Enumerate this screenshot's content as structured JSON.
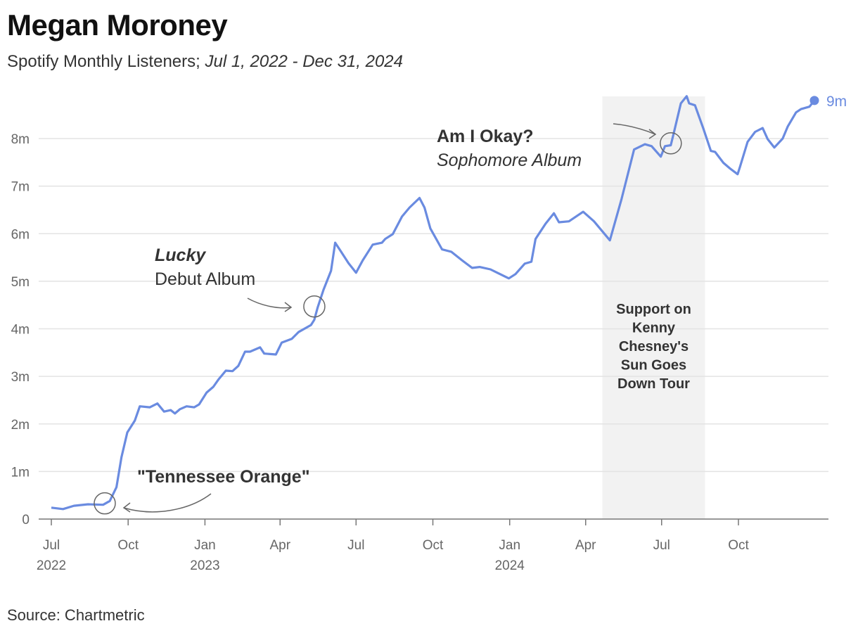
{
  "title": "Megan Moroney",
  "subtitle": {
    "metric": "Spotify Monthly Listeners; ",
    "range": "Jul 1, 2022 - Dec 31, 2024"
  },
  "source": "Source: Chartmetric",
  "chart_data": {
    "type": "line",
    "title": "Megan Moroney",
    "ylim": [
      0,
      9
    ],
    "xlim": [
      "2022-07-01",
      "2024-12-31"
    ],
    "grid": true,
    "line_color": "#6a8be0",
    "y_ticks": [
      {
        "v": 0,
        "label": "0"
      },
      {
        "v": 1,
        "label": "1m"
      },
      {
        "v": 2,
        "label": "2m"
      },
      {
        "v": 3,
        "label": "3m"
      },
      {
        "v": 4,
        "label": "4m"
      },
      {
        "v": 5,
        "label": "5m"
      },
      {
        "v": 6,
        "label": "6m"
      },
      {
        "v": 7,
        "label": "7m"
      },
      {
        "v": 8,
        "label": "8m"
      }
    ],
    "x_ticks": [
      {
        "date": "2022-07-01",
        "label": "Jul",
        "year": "2022"
      },
      {
        "date": "2022-10-01",
        "label": "Oct",
        "year": ""
      },
      {
        "date": "2023-01-01",
        "label": "Jan",
        "year": "2023"
      },
      {
        "date": "2023-04-01",
        "label": "Apr",
        "year": ""
      },
      {
        "date": "2023-07-01",
        "label": "Jul",
        "year": ""
      },
      {
        "date": "2023-10-01",
        "label": "Oct",
        "year": ""
      },
      {
        "date": "2024-01-01",
        "label": "Jan",
        "year": "2024"
      },
      {
        "date": "2024-04-01",
        "label": "Apr",
        "year": ""
      },
      {
        "date": "2024-07-01",
        "label": "Jul",
        "year": ""
      },
      {
        "date": "2024-10-01",
        "label": "Oct",
        "year": ""
      }
    ],
    "series": [
      {
        "points": [
          [
            "2022-07-01",
            0.24
          ],
          [
            "2022-07-15",
            0.21
          ],
          [
            "2022-07-28",
            0.28
          ],
          [
            "2022-08-14",
            0.31
          ],
          [
            "2022-09-01",
            0.3
          ],
          [
            "2022-09-09",
            0.38
          ],
          [
            "2022-09-17",
            0.67
          ],
          [
            "2022-09-23",
            1.3
          ],
          [
            "2022-09-30",
            1.82
          ],
          [
            "2022-10-09",
            2.07
          ],
          [
            "2022-10-15",
            2.37
          ],
          [
            "2022-10-27",
            2.35
          ],
          [
            "2022-11-05",
            2.43
          ],
          [
            "2022-11-13",
            2.26
          ],
          [
            "2022-11-21",
            2.29
          ],
          [
            "2022-11-26",
            2.22
          ],
          [
            "2022-12-02",
            2.31
          ],
          [
            "2022-12-10",
            2.37
          ],
          [
            "2022-12-19",
            2.35
          ],
          [
            "2022-12-25",
            2.41
          ],
          [
            "2023-01-03",
            2.66
          ],
          [
            "2023-01-11",
            2.78
          ],
          [
            "2023-01-17",
            2.93
          ],
          [
            "2023-01-26",
            3.12
          ],
          [
            "2023-02-03",
            3.11
          ],
          [
            "2023-02-10",
            3.22
          ],
          [
            "2023-02-18",
            3.52
          ],
          [
            "2023-02-24",
            3.52
          ],
          [
            "2023-03-08",
            3.61
          ],
          [
            "2023-03-13",
            3.48
          ],
          [
            "2023-03-27",
            3.46
          ],
          [
            "2023-04-03",
            3.71
          ],
          [
            "2023-04-15",
            3.79
          ],
          [
            "2023-04-23",
            3.93
          ],
          [
            "2023-05-08",
            4.08
          ],
          [
            "2023-05-12",
            4.19
          ],
          [
            "2023-05-16",
            4.45
          ],
          [
            "2023-05-23",
            4.82
          ],
          [
            "2023-06-01",
            5.22
          ],
          [
            "2023-06-06",
            5.81
          ],
          [
            "2023-06-12",
            5.65
          ],
          [
            "2023-06-22",
            5.38
          ],
          [
            "2023-07-01",
            5.18
          ],
          [
            "2023-07-09",
            5.44
          ],
          [
            "2023-07-21",
            5.77
          ],
          [
            "2023-08-01",
            5.81
          ],
          [
            "2023-08-05",
            5.89
          ],
          [
            "2023-08-14",
            5.99
          ],
          [
            "2023-08-25",
            6.36
          ],
          [
            "2023-09-03",
            6.55
          ],
          [
            "2023-09-15",
            6.75
          ],
          [
            "2023-09-21",
            6.55
          ],
          [
            "2023-09-28",
            6.11
          ],
          [
            "2023-10-12",
            5.67
          ],
          [
            "2023-10-23",
            5.62
          ],
          [
            "2023-11-05",
            5.44
          ],
          [
            "2023-11-17",
            5.28
          ],
          [
            "2023-11-26",
            5.3
          ],
          [
            "2023-12-09",
            5.25
          ],
          [
            "2023-12-17",
            5.18
          ],
          [
            "2023-12-31",
            5.06
          ],
          [
            "2024-01-08",
            5.15
          ],
          [
            "2024-01-19",
            5.37
          ],
          [
            "2024-01-27",
            5.41
          ],
          [
            "2024-02-01",
            5.89
          ],
          [
            "2024-02-13",
            6.21
          ],
          [
            "2024-02-23",
            6.43
          ],
          [
            "2024-02-29",
            6.24
          ],
          [
            "2024-03-12",
            6.26
          ],
          [
            "2024-03-29",
            6.46
          ],
          [
            "2024-04-11",
            6.26
          ],
          [
            "2024-04-30",
            5.86
          ],
          [
            "2024-05-14",
            6.73
          ],
          [
            "2024-05-29",
            7.77
          ],
          [
            "2024-06-11",
            7.88
          ],
          [
            "2024-06-19",
            7.84
          ],
          [
            "2024-06-30",
            7.62
          ],
          [
            "2024-07-05",
            7.84
          ],
          [
            "2024-07-12",
            7.86
          ],
          [
            "2024-07-16",
            8.15
          ],
          [
            "2024-07-24",
            8.74
          ],
          [
            "2024-07-31",
            8.89
          ],
          [
            "2024-08-03",
            8.74
          ],
          [
            "2024-08-10",
            8.7
          ],
          [
            "2024-08-20",
            8.21
          ],
          [
            "2024-08-29",
            7.74
          ],
          [
            "2024-09-03",
            7.72
          ],
          [
            "2024-09-13",
            7.49
          ],
          [
            "2024-09-21",
            7.37
          ],
          [
            "2024-09-30",
            7.25
          ],
          [
            "2024-10-03",
            7.41
          ],
          [
            "2024-10-12",
            7.93
          ],
          [
            "2024-10-21",
            8.14
          ],
          [
            "2024-10-30",
            8.22
          ],
          [
            "2024-11-05",
            7.99
          ],
          [
            "2024-11-13",
            7.81
          ],
          [
            "2024-11-23",
            8.0
          ],
          [
            "2024-11-29",
            8.25
          ],
          [
            "2024-12-09",
            8.55
          ],
          [
            "2024-12-15",
            8.62
          ],
          [
            "2024-12-25",
            8.67
          ],
          [
            "2024-12-31",
            8.8
          ]
        ]
      }
    ],
    "end_label": "9m",
    "shaded_period": {
      "start": "2024-04-21",
      "end": "2024-08-22",
      "label_lines": [
        "Support on",
        "Kenny",
        "Chesney's",
        "Sun Goes",
        "Down Tour"
      ],
      "color": "#f2f2f2"
    },
    "annotations": [
      {
        "date": "2022-09-03",
        "value": 0.33,
        "lines": [
          {
            "text": "\"Tennessee Orange\"",
            "style": "bold"
          }
        ]
      },
      {
        "date": "2023-05-12",
        "value": 4.47,
        "lines": [
          {
            "text": "Lucky",
            "style": "bold-italic"
          },
          {
            "text": "Debut Album",
            "style": "normal"
          }
        ]
      },
      {
        "date": "2024-07-12",
        "value": 7.9,
        "lines": [
          {
            "text": "Am I Okay?",
            "style": "bold"
          },
          {
            "text": "Sophomore Album",
            "style": "italic"
          }
        ]
      }
    ]
  }
}
